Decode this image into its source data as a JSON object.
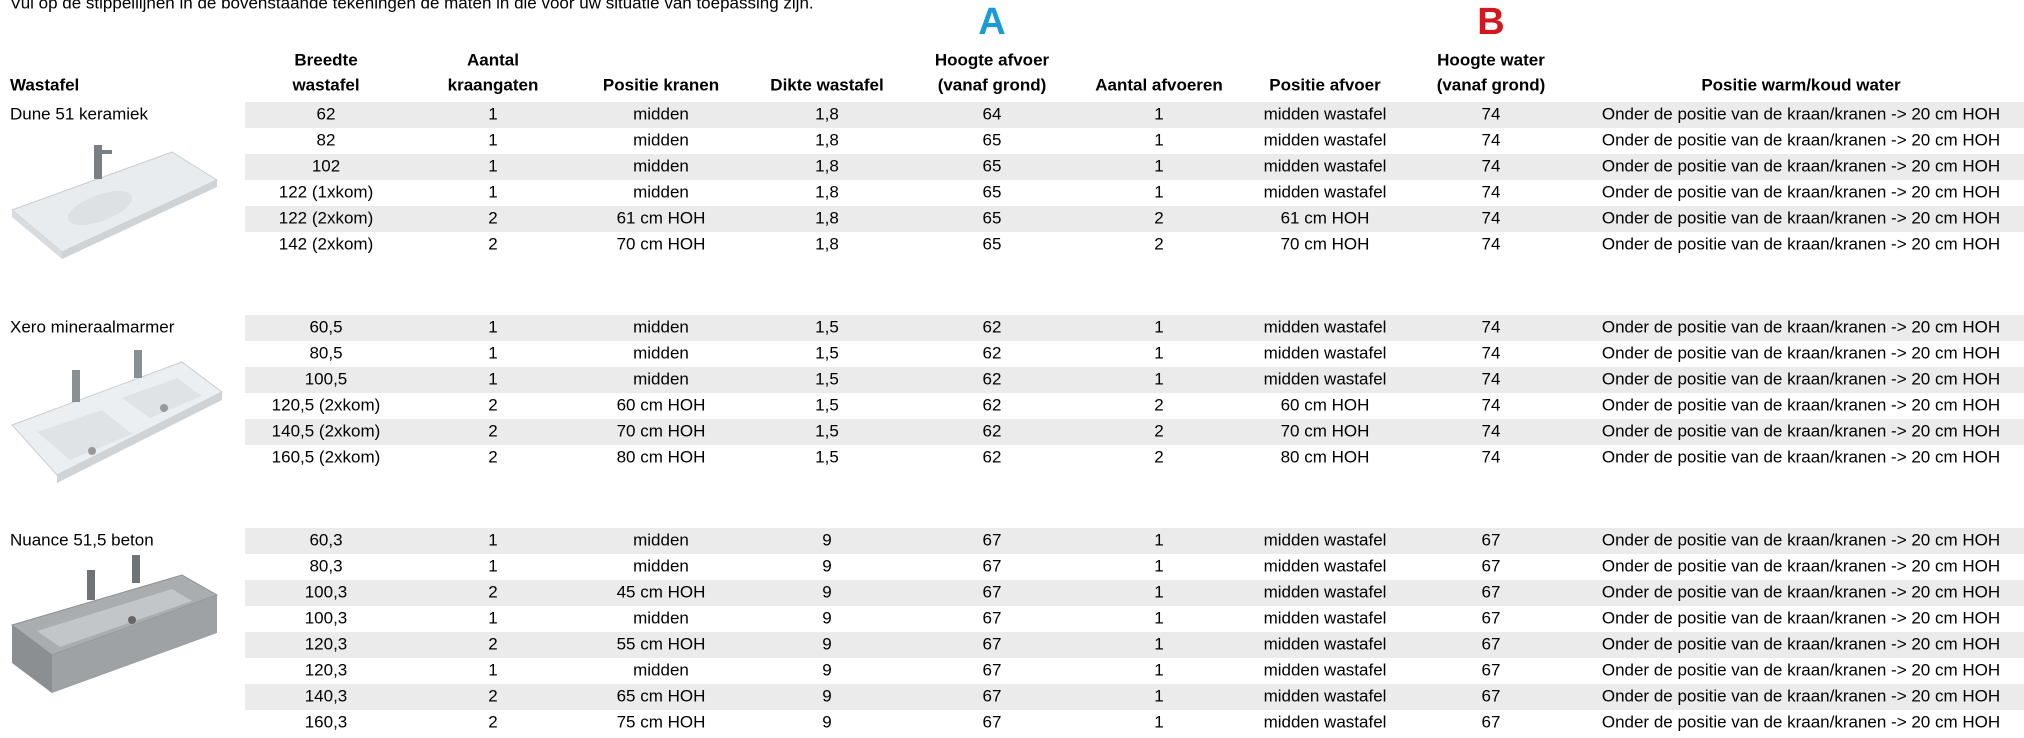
{
  "intro": "Vul op de stippellijnen in de bovenstaande tekeningen de maten in die voor uw situatie van toepassing zijn.",
  "markers": {
    "a": "A",
    "b": "B"
  },
  "table": {
    "headers": [
      [
        "Wastafel"
      ],
      [
        "Breedte",
        "wastafel"
      ],
      [
        "Aantal",
        "kraangaten"
      ],
      [
        "Positie kranen"
      ],
      [
        "Dikte wastafel"
      ],
      [
        "Hoogte afvoer",
        "(vanaf grond)"
      ],
      [
        "Aantal afvoeren"
      ],
      [
        "Positie afvoer"
      ],
      [
        "Hoogte water",
        "(vanaf grond)"
      ],
      [
        "Positie warm/koud water"
      ]
    ],
    "groups": [
      {
        "name": "Dune 51 keramiek",
        "rows": [
          [
            "62",
            "1",
            "midden",
            "1,8",
            "64",
            "1",
            "midden wastafel",
            "74",
            "Onder de positie van de kraan/kranen -> 20 cm HOH"
          ],
          [
            "82",
            "1",
            "midden",
            "1,8",
            "65",
            "1",
            "midden wastafel",
            "74",
            "Onder de positie van de kraan/kranen -> 20 cm HOH"
          ],
          [
            "102",
            "1",
            "midden",
            "1,8",
            "65",
            "1",
            "midden wastafel",
            "74",
            "Onder de positie van de kraan/kranen -> 20 cm HOH"
          ],
          [
            "122 (1xkom)",
            "1",
            "midden",
            "1,8",
            "65",
            "1",
            "midden wastafel",
            "74",
            "Onder de positie van de kraan/kranen -> 20 cm HOH"
          ],
          [
            "122 (2xkom)",
            "2",
            "61 cm HOH",
            "1,8",
            "65",
            "2",
            "61 cm HOH",
            "74",
            "Onder de positie van de kraan/kranen -> 20 cm HOH"
          ],
          [
            "142 (2xkom)",
            "2",
            "70 cm HOH",
            "1,8",
            "65",
            "2",
            "70 cm HOH",
            "74",
            "Onder de positie van de kraan/kranen -> 20 cm HOH"
          ]
        ]
      },
      {
        "name": "Xero mineraalmarmer",
        "rows": [
          [
            "60,5",
            "1",
            "midden",
            "1,5",
            "62",
            "1",
            "midden wastafel",
            "74",
            "Onder de positie van de kraan/kranen -> 20 cm HOH"
          ],
          [
            "80,5",
            "1",
            "midden",
            "1,5",
            "62",
            "1",
            "midden wastafel",
            "74",
            "Onder de positie van de kraan/kranen -> 20 cm HOH"
          ],
          [
            "100,5",
            "1",
            "midden",
            "1,5",
            "62",
            "1",
            "midden wastafel",
            "74",
            "Onder de positie van de kraan/kranen -> 20 cm HOH"
          ],
          [
            "120,5 (2xkom)",
            "2",
            "60 cm HOH",
            "1,5",
            "62",
            "2",
            "60 cm HOH",
            "74",
            "Onder de positie van de kraan/kranen -> 20 cm HOH"
          ],
          [
            "140,5 (2xkom)",
            "2",
            "70 cm HOH",
            "1,5",
            "62",
            "2",
            "70 cm HOH",
            "74",
            "Onder de positie van de kraan/kranen -> 20 cm HOH"
          ],
          [
            "160,5 (2xkom)",
            "2",
            "80 cm HOH",
            "1,5",
            "62",
            "2",
            "80 cm HOH",
            "74",
            "Onder de positie van de kraan/kranen -> 20 cm HOH"
          ]
        ]
      },
      {
        "name": "Nuance 51,5 beton",
        "rows": [
          [
            "60,3",
            "1",
            "midden",
            "9",
            "67",
            "1",
            "midden wastafel",
            "67",
            "Onder de positie van de kraan/kranen -> 20 cm HOH"
          ],
          [
            "80,3",
            "1",
            "midden",
            "9",
            "67",
            "1",
            "midden wastafel",
            "67",
            "Onder de positie van de kraan/kranen -> 20 cm HOH"
          ],
          [
            "100,3",
            "2",
            "45 cm HOH",
            "9",
            "67",
            "1",
            "midden wastafel",
            "67",
            "Onder de positie van de kraan/kranen -> 20 cm HOH"
          ],
          [
            "100,3",
            "1",
            "midden",
            "9",
            "67",
            "1",
            "midden wastafel",
            "67",
            "Onder de positie van de kraan/kranen -> 20 cm HOH"
          ],
          [
            "120,3",
            "2",
            "55 cm HOH",
            "9",
            "67",
            "1",
            "midden wastafel",
            "67",
            "Onder de positie van de kraan/kranen -> 20 cm HOH"
          ],
          [
            "120,3",
            "1",
            "midden",
            "9",
            "67",
            "1",
            "midden wastafel",
            "67",
            "Onder de positie van de kraan/kranen -> 20 cm HOH"
          ],
          [
            "140,3",
            "2",
            "65 cm HOH",
            "9",
            "67",
            "1",
            "midden wastafel",
            "67",
            "Onder de positie van de kraan/kranen -> 20 cm HOH"
          ],
          [
            "160,3",
            "2",
            "75 cm HOH",
            "9",
            "67",
            "1",
            "midden wastafel",
            "67",
            "Onder de positie van de kraan/kranen -> 20 cm HOH"
          ]
        ]
      }
    ]
  }
}
